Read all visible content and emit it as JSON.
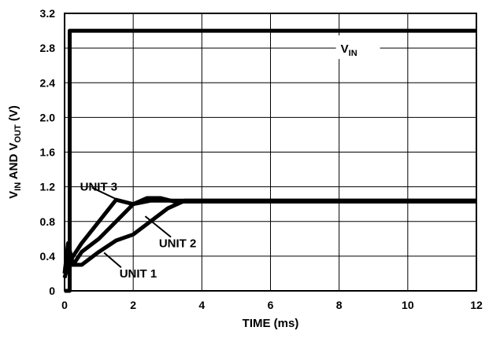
{
  "chart_data": {
    "type": "line",
    "xlabel": "TIME (ms)",
    "ylabel": {
      "prefix1": "V",
      "sub1": "IN",
      "mid": " AND V",
      "sub2": "OUT",
      "suffix": " (V)"
    },
    "xlim": [
      0,
      12
    ],
    "ylim": [
      0,
      3.2
    ],
    "x_ticks": [
      "0",
      "2",
      "4",
      "6",
      "8",
      "10",
      "12"
    ],
    "y_ticks": [
      "0",
      "0.4",
      "0.8",
      "1.2",
      "1.6",
      "2.0",
      "2.4",
      "2.8",
      "3.2"
    ],
    "grid": true,
    "series": [
      {
        "name": "VIN",
        "x": [
          0,
          0.15,
          0.15,
          12
        ],
        "y": [
          0,
          0,
          3.0,
          3.0
        ]
      },
      {
        "name": "UNIT 1",
        "x": [
          0,
          0.1,
          0.25,
          0.5,
          1.0,
          1.5,
          2.0,
          2.5,
          3.0,
          3.5,
          4.0,
          12
        ],
        "y": [
          0.15,
          0.3,
          0.3,
          0.3,
          0.45,
          0.58,
          0.65,
          0.8,
          0.95,
          1.04,
          1.04,
          1.04
        ]
      },
      {
        "name": "UNIT 2",
        "x": [
          0,
          0.1,
          0.25,
          0.5,
          1.0,
          1.5,
          2.0,
          2.5,
          3.0,
          4.0,
          12
        ],
        "y": [
          0.2,
          0.55,
          0.3,
          0.45,
          0.6,
          0.8,
          1.0,
          1.04,
          1.04,
          1.04,
          1.04
        ]
      },
      {
        "name": "UNIT 3",
        "x": [
          0,
          0.1,
          0.25,
          0.5,
          1.0,
          1.5,
          2.0,
          2.4,
          2.8,
          3.2,
          4.0,
          12
        ],
        "y": [
          0.25,
          0.3,
          0.4,
          0.55,
          0.8,
          1.05,
          1.0,
          1.07,
          1.07,
          1.03,
          1.03,
          1.03
        ]
      }
    ],
    "annotations": [
      {
        "text": "UNIT 3",
        "x": 0.45,
        "y": 1.2
      },
      {
        "text": "UNIT 2",
        "x": 2.75,
        "y": 0.55
      },
      {
        "text": "UNIT 1",
        "x": 1.6,
        "y": 0.2
      }
    ],
    "vin_label": {
      "main": "V",
      "sub": "IN"
    }
  }
}
